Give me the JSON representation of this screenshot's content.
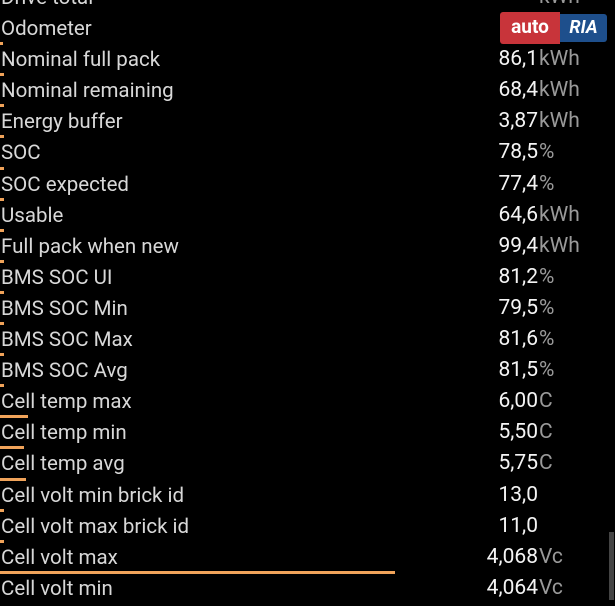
{
  "logo": {
    "part1": "auto",
    "part2": "RIA"
  },
  "rows": [
    {
      "label": "Drive total",
      "value": "",
      "unit": "kWh"
    },
    {
      "label": "Odometer",
      "value": "",
      "unit": ""
    },
    {
      "label": "Nominal full pack",
      "value": "86,1",
      "unit": "kWh"
    },
    {
      "label": "Nominal remaining",
      "value": "68,4",
      "unit": "kWh"
    },
    {
      "label": "Energy buffer",
      "value": "3,87",
      "unit": "kWh"
    },
    {
      "label": "SOC",
      "value": "78,5",
      "unit": "%"
    },
    {
      "label": "SOC expected",
      "value": "77,4",
      "unit": "%"
    },
    {
      "label": "Usable",
      "value": "64,6",
      "unit": "kWh"
    },
    {
      "label": "Full pack when new",
      "value": "99,4",
      "unit": "kWh"
    },
    {
      "label": "BMS SOC UI",
      "value": "81,2",
      "unit": "%"
    },
    {
      "label": "BMS SOC Min",
      "value": "79,5",
      "unit": "%"
    },
    {
      "label": "BMS SOC Max",
      "value": "81,6",
      "unit": "%"
    },
    {
      "label": "BMS SOC Avg",
      "value": "81,5",
      "unit": "%"
    },
    {
      "label": "Cell temp max",
      "value": "6,00",
      "unit": "C"
    },
    {
      "label": "Cell temp min",
      "value": "5,50",
      "unit": "C"
    },
    {
      "label": "Cell temp avg",
      "value": "5,75",
      "unit": "C"
    },
    {
      "label": "Cell volt min brick id",
      "value": "13,0",
      "unit": ""
    },
    {
      "label": "Cell volt max brick id",
      "value": "11,0",
      "unit": ""
    },
    {
      "label": "Cell volt max",
      "value": "4,068",
      "unit": "Vc"
    },
    {
      "label": "Cell volt min",
      "value": "4,064",
      "unit": "Vc"
    }
  ]
}
